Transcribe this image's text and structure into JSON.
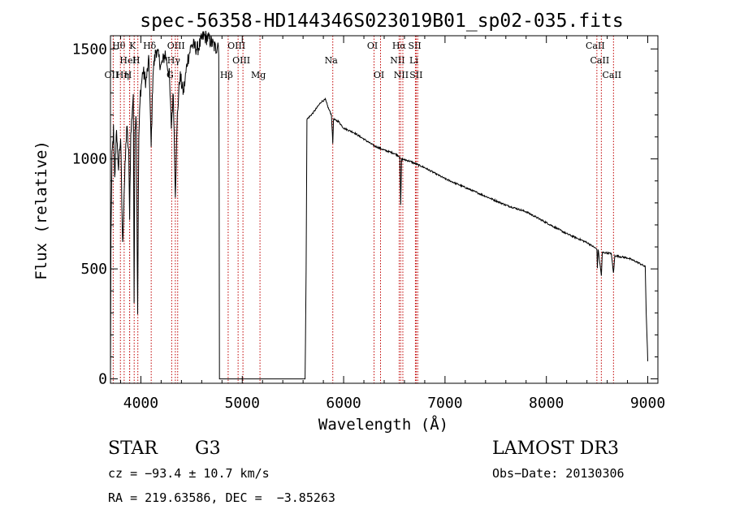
{
  "chart_data": {
    "type": "line",
    "title": "spec-56358-HD144346S023019B01_sp02-035.fits",
    "xlabel": "Wavelength (Å)",
    "ylabel": "Flux (relative)",
    "xlim": [
      3700,
      9100
    ],
    "ylim": [
      -20,
      1560
    ],
    "xticks": [
      4000,
      5000,
      6000,
      7000,
      8000,
      9000
    ],
    "xtick_labels": [
      "4000",
      "5000",
      "6000",
      "7000",
      "8000",
      "9000"
    ],
    "yticks": [
      0,
      500,
      1000,
      1500
    ],
    "ytick_labels": [
      "0",
      "500",
      "1000",
      "1500"
    ],
    "grid": false,
    "series": [
      {
        "name": "spectrum",
        "anchors": [
          [
            3700,
            0
          ],
          [
            3705,
            650
          ],
          [
            3715,
            1000
          ],
          [
            3730,
            1130
          ],
          [
            3742,
            900
          ],
          [
            3760,
            1150
          ],
          [
            3775,
            950
          ],
          [
            3800,
            1100
          ],
          [
            3820,
            600
          ],
          [
            3835,
            850
          ],
          [
            3860,
            1150
          ],
          [
            3880,
            1020
          ],
          [
            3889,
            750
          ],
          [
            3900,
            1100
          ],
          [
            3925,
            1300
          ],
          [
            3933,
            350
          ],
          [
            3942,
            1150
          ],
          [
            3955,
            1200
          ],
          [
            3968,
            300
          ],
          [
            3980,
            1100
          ],
          [
            3995,
            1300
          ],
          [
            4020,
            1400
          ],
          [
            4050,
            1350
          ],
          [
            4080,
            1450
          ],
          [
            4101,
            1050
          ],
          [
            4120,
            1400
          ],
          [
            4150,
            1500
          ],
          [
            4200,
            1420
          ],
          [
            4240,
            1480
          ],
          [
            4280,
            1380
          ],
          [
            4300,
            1150
          ],
          [
            4320,
            1300
          ],
          [
            4340,
            850
          ],
          [
            4360,
            1200
          ],
          [
            4385,
            1380
          ],
          [
            4420,
            1300
          ],
          [
            4460,
            1450
          ],
          [
            4500,
            1520
          ],
          [
            4560,
            1500
          ],
          [
            4620,
            1560
          ],
          [
            4680,
            1540
          ],
          [
            4740,
            1500
          ],
          [
            4760,
            1530
          ],
          [
            4768,
            1500
          ],
          [
            4772,
            900
          ],
          [
            4775,
            0
          ],
          [
            5620,
            0
          ],
          [
            5630,
            500
          ],
          [
            5638,
            1180
          ],
          [
            5700,
            1210
          ],
          [
            5780,
            1260
          ],
          [
            5820,
            1270
          ],
          [
            5850,
            1230
          ],
          [
            5880,
            1200
          ],
          [
            5893,
            1070
          ],
          [
            5900,
            1180
          ],
          [
            5950,
            1170
          ],
          [
            6000,
            1140
          ],
          [
            6100,
            1120
          ],
          [
            6200,
            1090
          ],
          [
            6300,
            1060
          ],
          [
            6400,
            1040
          ],
          [
            6500,
            1025
          ],
          [
            6555,
            1010
          ],
          [
            6563,
            790
          ],
          [
            6572,
            1000
          ],
          [
            6650,
            990
          ],
          [
            6800,
            960
          ],
          [
            7000,
            910
          ],
          [
            7200,
            870
          ],
          [
            7400,
            830
          ],
          [
            7600,
            790
          ],
          [
            7800,
            760
          ],
          [
            8000,
            710
          ],
          [
            8200,
            660
          ],
          [
            8400,
            620
          ],
          [
            8498,
            590
          ],
          [
            8503,
            500
          ],
          [
            8510,
            590
          ],
          [
            8542,
            470
          ],
          [
            8552,
            575
          ],
          [
            8640,
            570
          ],
          [
            8662,
            480
          ],
          [
            8675,
            560
          ],
          [
            8800,
            550
          ],
          [
            8900,
            530
          ],
          [
            8975,
            510
          ],
          [
            8985,
            300
          ],
          [
            9000,
            80
          ]
        ]
      }
    ],
    "line_annotations": [
      {
        "name": "H-theta",
        "label": "Hθ",
        "wavelength": 3798,
        "row": 0
      },
      {
        "name": "K",
        "label": "K",
        "wavelength": 3934,
        "row": 0
      },
      {
        "name": "H-delta",
        "label": "Hδ",
        "wavelength": 4102,
        "row": 0
      },
      {
        "name": "O-III-4363",
        "label": "OIII",
        "wavelength": 4363,
        "row": 0
      },
      {
        "name": "O-III-4959",
        "label": "OIII",
        "wavelength": 4959,
        "row": 0
      },
      {
        "name": "O-I-6300",
        "label": "OI",
        "wavelength": 6300,
        "row": 0
      },
      {
        "name": "H-alpha",
        "label": "Hα",
        "wavelength": 6563,
        "row": 0
      },
      {
        "name": "S-II-6717",
        "label": "SII",
        "wavelength": 6717,
        "row": 0
      },
      {
        "name": "Ca-II-8498",
        "label": "CaII",
        "wavelength": 8498,
        "row": 0
      },
      {
        "name": "He-I",
        "label": "HeI",
        "wavelength": 3889,
        "row": 1
      },
      {
        "name": "H-epsilon-area",
        "label": "H",
        "wavelength": 3970,
        "row": 1
      },
      {
        "name": "H-gamma",
        "label": "Hγ",
        "wavelength": 4340,
        "row": 1
      },
      {
        "name": "O-III-5007",
        "label": "OIII",
        "wavelength": 5007,
        "row": 1
      },
      {
        "name": "Na",
        "label": "Na",
        "wavelength": 5893,
        "row": 1
      },
      {
        "name": "N-II-6548",
        "label": "NII",
        "wavelength": 6548,
        "row": 1
      },
      {
        "name": "Li",
        "label": "Li",
        "wavelength": 6708,
        "row": 1
      },
      {
        "name": "Ca-II-8542",
        "label": "CaII",
        "wavelength": 8542,
        "row": 1
      },
      {
        "name": "O-II",
        "label": "OII",
        "wavelength": 3727,
        "row": 2
      },
      {
        "name": "H-eta",
        "label": "Hη",
        "wavelength": 3835,
        "row": 2
      },
      {
        "name": "H-zeta",
        "label": "H",
        "wavelength": 3889,
        "row": 2
      },
      {
        "name": "G-band",
        "label": "G",
        "wavelength": 4304,
        "row": 2
      },
      {
        "name": "H-beta",
        "label": "Hβ",
        "wavelength": 4861,
        "row": 2
      },
      {
        "name": "Mg",
        "label": "Mg",
        "wavelength": 5175,
        "row": 2
      },
      {
        "name": "O-I-6364",
        "label": "OI",
        "wavelength": 6364,
        "row": 2
      },
      {
        "name": "N-II-6584",
        "label": "NII",
        "wavelength": 6584,
        "row": 2
      },
      {
        "name": "S-II-6731",
        "label": "SII",
        "wavelength": 6731,
        "row": 2
      },
      {
        "name": "Ca-II-8662",
        "label": "CaII",
        "wavelength": 8662,
        "row": 2
      }
    ]
  },
  "info": {
    "object_class": "STAR",
    "subclass": "G3",
    "survey": "LAMOST DR3",
    "cz": "cz = −93.4 ± 10.7 km/s",
    "obs_date": "Obs−Date: 20130306",
    "coords": "RA = 219.63586, DEC =  −3.85263"
  },
  "colors": {
    "spectrum": "#000000",
    "annotation_line": "#c00000",
    "axes": "#000000",
    "background": "#ffffff"
  }
}
